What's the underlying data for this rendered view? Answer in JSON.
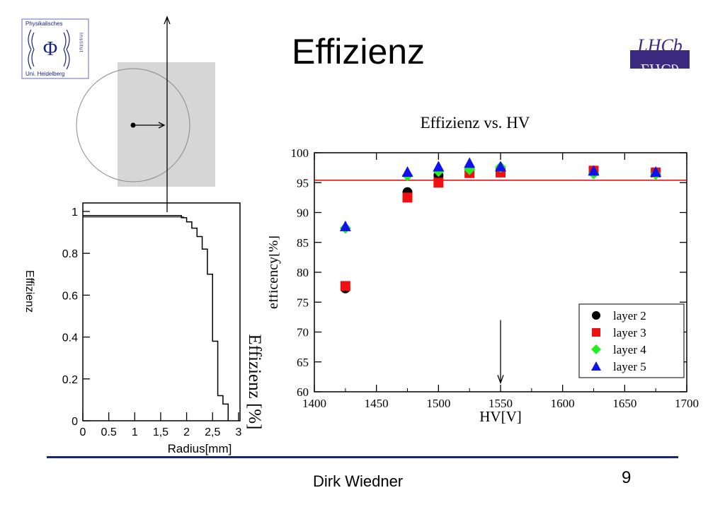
{
  "slide": {
    "title": "Effizienz",
    "author": "Dirk Wiedner",
    "page_number": "9"
  },
  "logos": {
    "institute": {
      "icon": "physikalisches-institut-logo",
      "text_top": "Physikalisches",
      "text_side": "Institut",
      "text_bottom": "Uni. Heidelberg",
      "symbol": "Φ"
    },
    "experiment": {
      "icon": "lhcb-logo",
      "text": "LHCb",
      "background": "#3a2a80",
      "accent": "#3a2a80"
    }
  },
  "chart_data": [
    {
      "type": "line",
      "step": true,
      "title": "",
      "xlabel": "Radius[mm]",
      "ylabel": "Effizienz",
      "overlay_label": "Effizienz [%]",
      "xlim": [
        0,
        3
      ],
      "ylim": [
        0,
        1.02
      ],
      "x_ticks": [
        0,
        0.5,
        1,
        1.5,
        2,
        2.5,
        3
      ],
      "x_tick_labels": [
        "0",
        "0.5",
        "1",
        "1,5",
        "2",
        "2,5",
        "3"
      ],
      "y_ticks": [
        0,
        0.2,
        0.4,
        0.6,
        0.8,
        1
      ],
      "y_tick_labels": [
        "0",
        "0.2",
        "0.4",
        "0.6",
        "0.8",
        "1"
      ],
      "series": [
        {
          "x": [
            0,
            0.1,
            0.2,
            0.3,
            0.4,
            0.5,
            0.6,
            0.7,
            0.8,
            0.9,
            1.0,
            1.1,
            1.2,
            1.3,
            1.4,
            1.5,
            1.6,
            1.7,
            1.8,
            1.9,
            2.0,
            2.1,
            2.2,
            2.3,
            2.4,
            2.5,
            2.6,
            2.7,
            2.8
          ],
          "y": [
            0.98,
            0.98,
            0.98,
            0.98,
            0.98,
            0.98,
            0.98,
            0.98,
            0.98,
            0.98,
            0.98,
            0.98,
            0.98,
            0.98,
            0.98,
            0.98,
            0.98,
            0.98,
            0.98,
            0.97,
            0.95,
            0.92,
            0.88,
            0.82,
            0.7,
            0.38,
            0.12,
            0.08,
            0.0
          ],
          "reference_y": 0.98,
          "reference_xmax": 1.95
        }
      ],
      "schematic": {
        "description_free": true,
        "arrow_up": true,
        "circle": true,
        "shaded_region": true,
        "radius_arrow": true
      }
    },
    {
      "type": "scatter",
      "title": "Effizienz vs. HV",
      "xlabel": "HV[V]",
      "ylabel": "efficency[%]",
      "xlim": [
        1400,
        1700
      ],
      "ylim": [
        60,
        100
      ],
      "x_ticks": [
        1400,
        1450,
        1500,
        1550,
        1600,
        1650,
        1700
      ],
      "y_ticks": [
        60,
        65,
        70,
        75,
        80,
        85,
        90,
        95,
        100
      ],
      "legend_position": "bottom-right",
      "reference_line": {
        "y": 95.4,
        "color": "#e00000"
      },
      "arrow_x": 1550,
      "series": [
        {
          "name": "layer 2",
          "marker": "circle",
          "color": "#000000",
          "x": [
            1425,
            1475,
            1500,
            1525,
            1550,
            1625,
            1675
          ],
          "y": [
            77.3,
            93.4,
            96.2,
            97.0,
            97.2,
            97.0,
            96.7
          ]
        },
        {
          "name": "layer 3",
          "marker": "square",
          "color": "#ee1111",
          "x": [
            1425,
            1475,
            1500,
            1525,
            1550,
            1625,
            1675
          ],
          "y": [
            77.7,
            92.5,
            95.0,
            96.6,
            96.7,
            97.0,
            96.7
          ]
        },
        {
          "name": "layer 4",
          "marker": "diamond",
          "color": "#22ee22",
          "x": [
            1425,
            1475,
            1500,
            1525,
            1550,
            1625,
            1675
          ],
          "y": [
            87.4,
            96.2,
            96.9,
            97.2,
            97.6,
            96.5,
            96.4
          ]
        },
        {
          "name": "layer 5",
          "marker": "triangle",
          "color": "#1111ee",
          "x": [
            1425,
            1475,
            1500,
            1525,
            1550,
            1625,
            1675
          ],
          "y": [
            87.7,
            96.8,
            97.7,
            98.3,
            97.7,
            97.0,
            96.8
          ]
        }
      ]
    }
  ]
}
